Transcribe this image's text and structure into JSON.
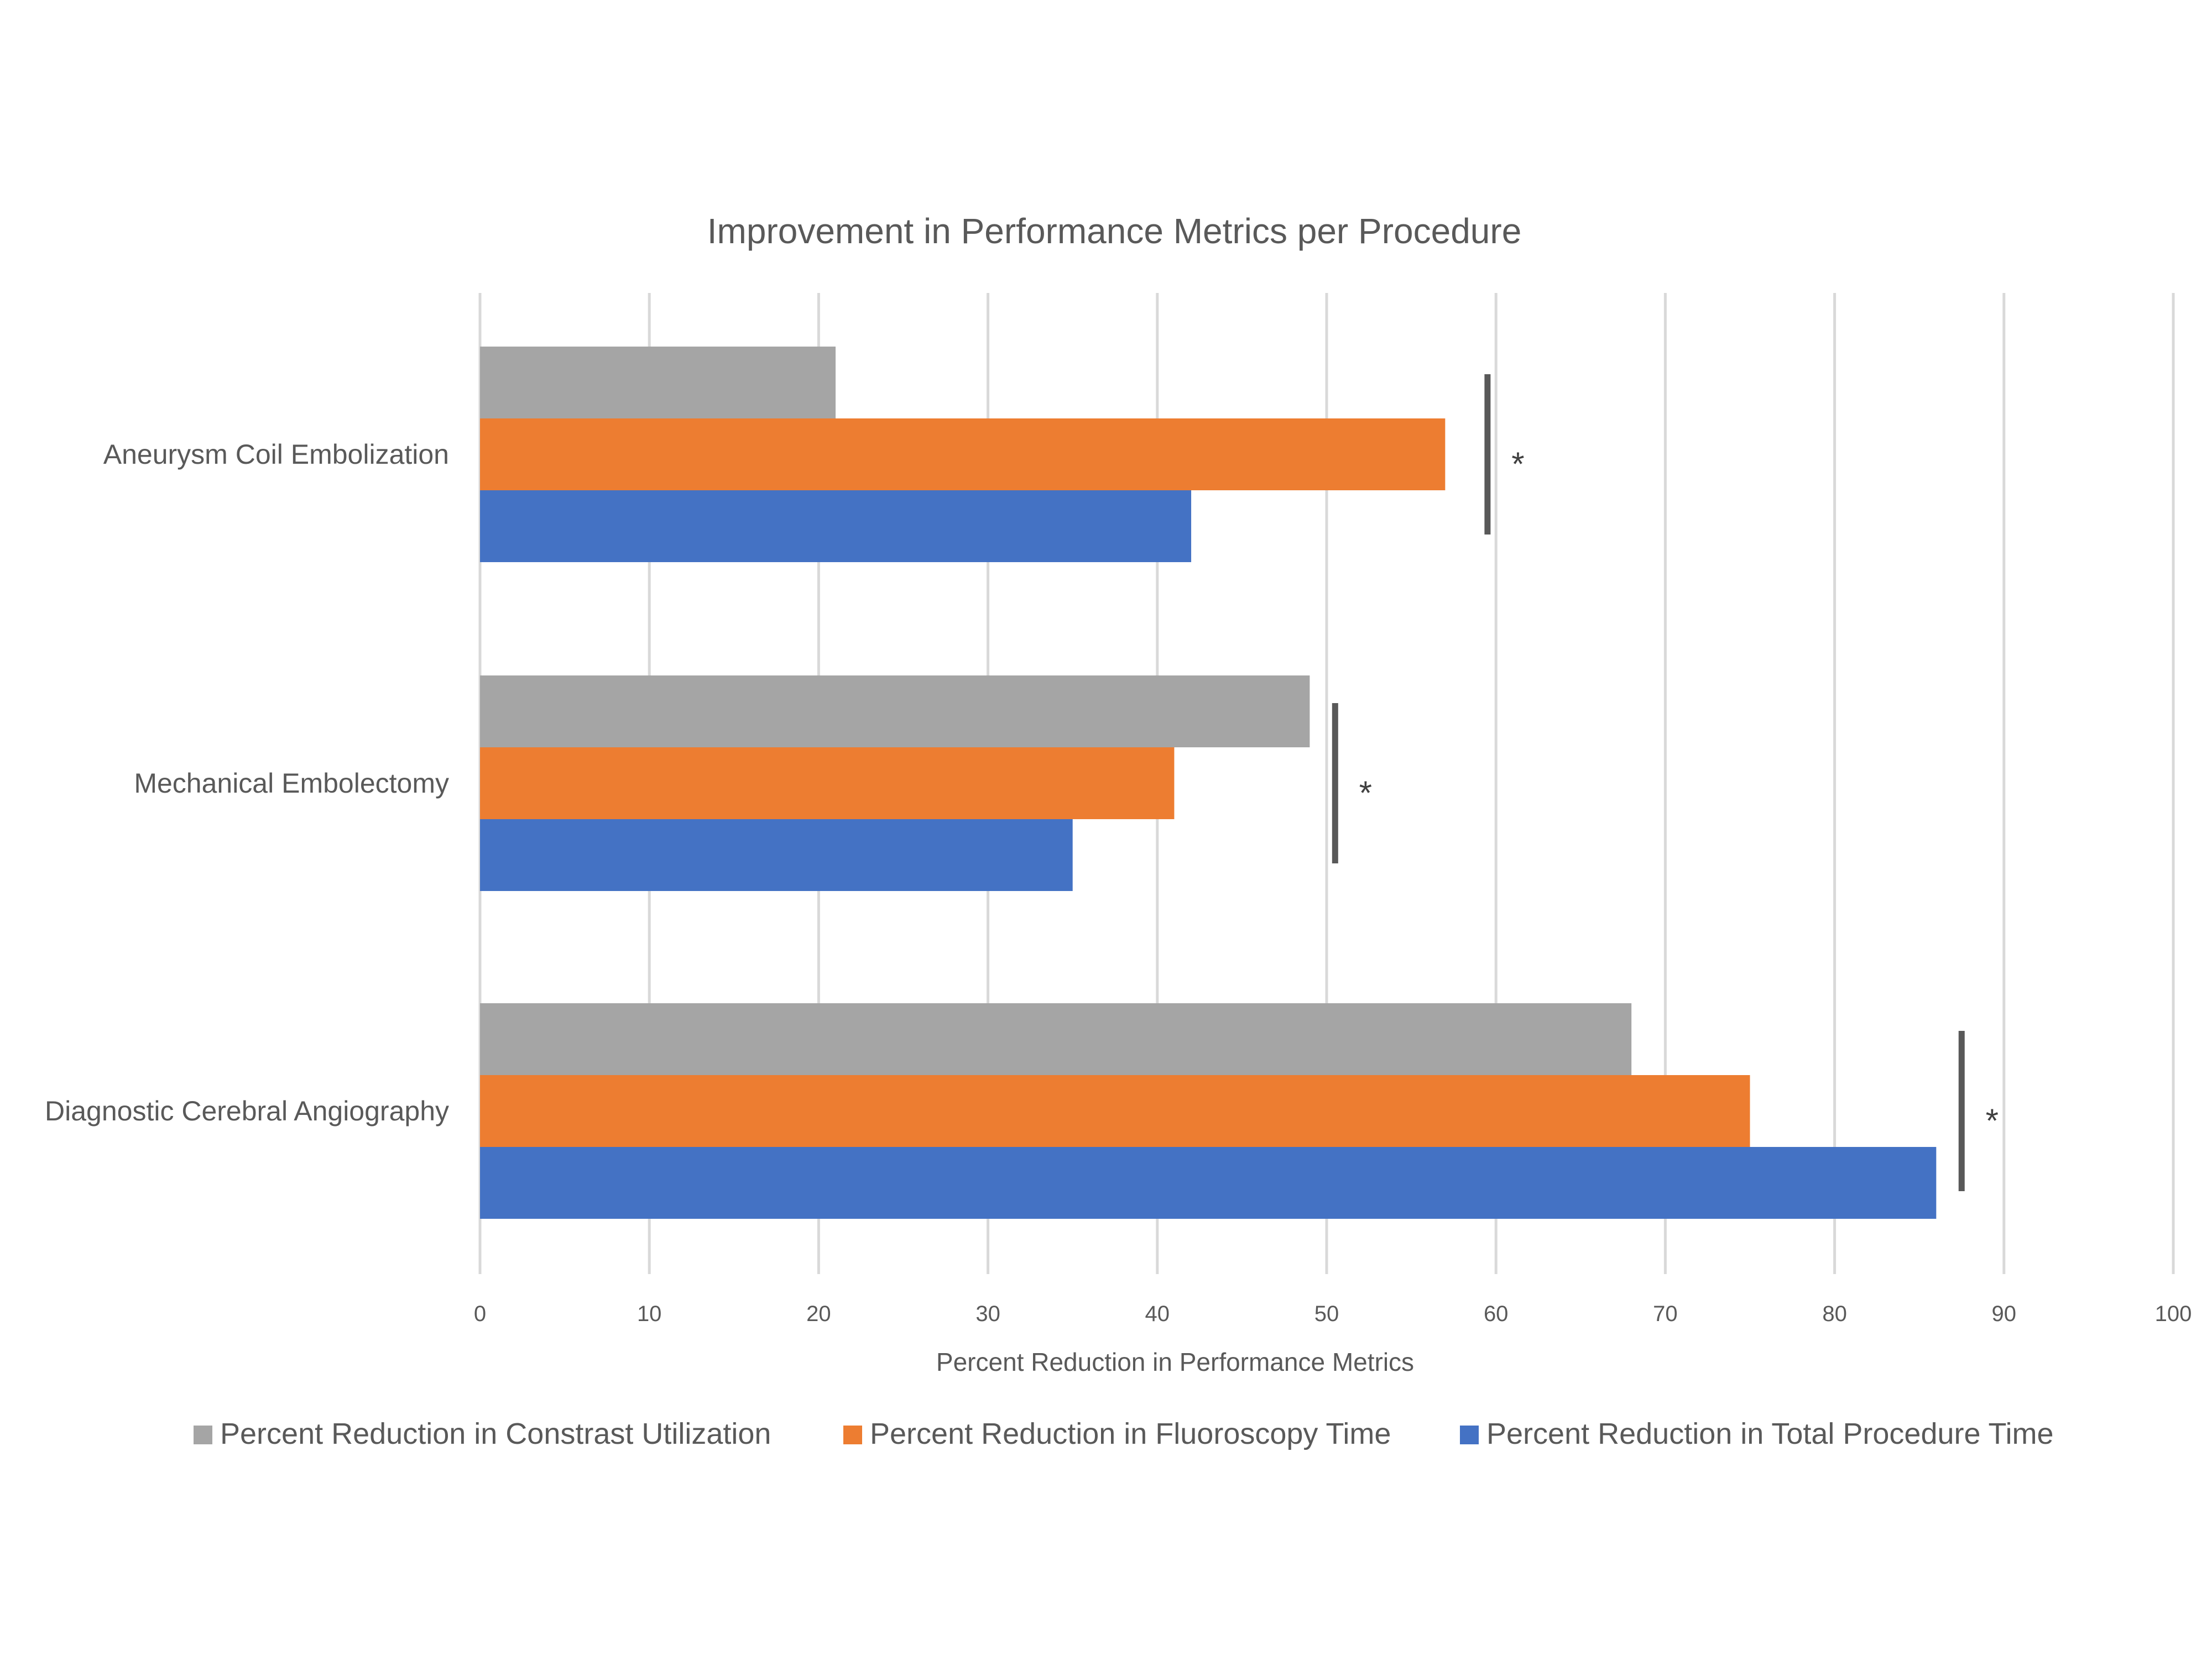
{
  "chart_data": {
    "type": "bar",
    "orientation": "horizontal",
    "title": "Improvement in Performance Metrics per Procedure",
    "xlabel": "Percent Reduction in Performance Metrics",
    "ylabel": "",
    "xlim": [
      0,
      100
    ],
    "x_ticks": [
      0,
      10,
      20,
      30,
      40,
      50,
      60,
      70,
      80,
      90,
      100
    ],
    "grid": true,
    "legend_position": "bottom",
    "categories": [
      "Aneurysm Coil Embolization",
      "Mechanical Embolectomy",
      "Diagnostic Cerebral Angiography"
    ],
    "series": [
      {
        "name": "Percent Reduction in Constrast Utilization",
        "color": "#a5a5a5",
        "values": [
          21,
          49,
          68
        ]
      },
      {
        "name": "Percent Reduction in Fluoroscopy Time",
        "color": "#ed7d31",
        "values": [
          57,
          41,
          75
        ]
      },
      {
        "name": "Percent Reduction in Total Procedure Time",
        "color": "#4472c4",
        "values": [
          42,
          35,
          86
        ]
      }
    ],
    "annotations": [
      {
        "category": "Aneurysm Coil Embolization",
        "text": "*",
        "bracket_x": 59.5
      },
      {
        "category": "Mechanical Embolectomy",
        "text": "*",
        "bracket_x": 50.5
      },
      {
        "category": "Diagnostic Cerebral Angiography",
        "text": "*",
        "bracket_x": 87.5
      }
    ]
  }
}
